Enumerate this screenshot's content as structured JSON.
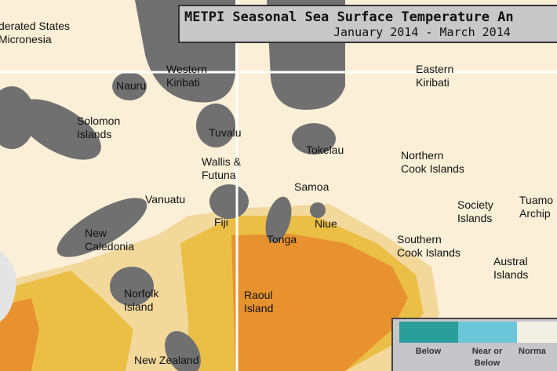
{
  "title": "METPI Seasonal Sea Surface Temperature An",
  "period": "January 2014 - March 2014",
  "labels": [
    "derated States\nMicronesia",
    "Nauru",
    "Western\nKiribati",
    "Eastern\nKiribati",
    "Solomon\nIslands",
    "Tuvalu",
    "Tokelau",
    "Northern\nCook Islands",
    "Wallis &\nFutuna",
    "Samoa",
    "Vanuatu",
    "Fiji",
    "Niue",
    "Tonga",
    "Society\nIslands",
    "Tuamo\nArchip",
    "New\nCaledonia",
    "Southern\nCook Islands",
    "Austral\nIslands",
    "Norfolk\nIsland",
    "Raoul\nIsland",
    "New Zealand"
  ],
  "legend": {
    "items": [
      {
        "label": "Below",
        "color": "#2a9f9a"
      },
      {
        "label": "Near or\nBelow",
        "color": "#6cc6da"
      },
      {
        "label": "Norma",
        "color": "#f0efe4"
      }
    ]
  },
  "colors": {
    "ocean": "#fbefd7",
    "land_mask": "#707070",
    "above_light": "#f3d89c",
    "above_mid": "#ebbf45",
    "above_high": "#e8922f"
  }
}
